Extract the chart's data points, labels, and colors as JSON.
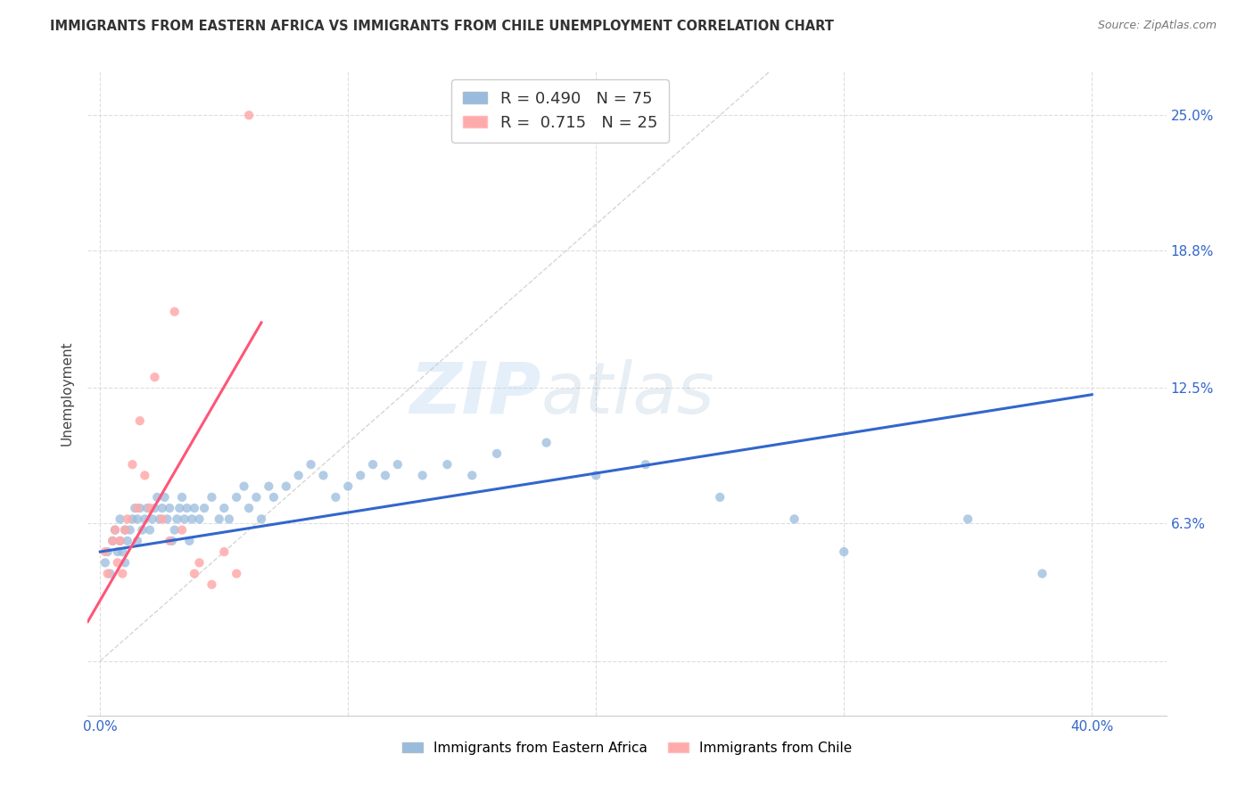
{
  "title": "IMMIGRANTS FROM EASTERN AFRICA VS IMMIGRANTS FROM CHILE UNEMPLOYMENT CORRELATION CHART",
  "source": "Source: ZipAtlas.com",
  "ylabel": "Unemployment",
  "yticks": [
    0.0,
    0.063,
    0.125,
    0.188,
    0.25
  ],
  "ytick_labels": [
    "",
    "6.3%",
    "12.5%",
    "18.8%",
    "25.0%"
  ],
  "xticks": [
    0.0,
    0.1,
    0.2,
    0.3,
    0.4
  ],
  "xtick_labels": [
    "0.0%",
    "",
    "",
    "",
    "40.0%"
  ],
  "xlim": [
    -0.005,
    0.43
  ],
  "ylim": [
    -0.025,
    0.27
  ],
  "R_blue": 0.49,
  "N_blue": 75,
  "R_pink": 0.715,
  "N_pink": 25,
  "blue_color": "#99BBDD",
  "pink_color": "#FFAAAA",
  "blue_line_color": "#3366CC",
  "pink_line_color": "#FF5577",
  "diag_line_color": "#CCCCCC",
  "legend_label_blue": "Immigrants from Eastern Africa",
  "legend_label_pink": "Immigrants from Chile",
  "blue_scatter_x": [
    0.002,
    0.003,
    0.004,
    0.005,
    0.006,
    0.007,
    0.008,
    0.008,
    0.009,
    0.01,
    0.01,
    0.011,
    0.012,
    0.013,
    0.014,
    0.015,
    0.015,
    0.016,
    0.017,
    0.018,
    0.019,
    0.02,
    0.021,
    0.022,
    0.023,
    0.024,
    0.025,
    0.026,
    0.027,
    0.028,
    0.029,
    0.03,
    0.031,
    0.032,
    0.033,
    0.034,
    0.035,
    0.036,
    0.037,
    0.038,
    0.04,
    0.042,
    0.045,
    0.048,
    0.05,
    0.052,
    0.055,
    0.058,
    0.06,
    0.063,
    0.065,
    0.068,
    0.07,
    0.075,
    0.08,
    0.085,
    0.09,
    0.095,
    0.1,
    0.105,
    0.11,
    0.115,
    0.12,
    0.13,
    0.14,
    0.15,
    0.16,
    0.18,
    0.2,
    0.22,
    0.25,
    0.28,
    0.3,
    0.35,
    0.38
  ],
  "blue_scatter_y": [
    0.045,
    0.05,
    0.04,
    0.055,
    0.06,
    0.05,
    0.055,
    0.065,
    0.05,
    0.06,
    0.045,
    0.055,
    0.06,
    0.065,
    0.07,
    0.055,
    0.065,
    0.07,
    0.06,
    0.065,
    0.07,
    0.06,
    0.065,
    0.07,
    0.075,
    0.065,
    0.07,
    0.075,
    0.065,
    0.07,
    0.055,
    0.06,
    0.065,
    0.07,
    0.075,
    0.065,
    0.07,
    0.055,
    0.065,
    0.07,
    0.065,
    0.07,
    0.075,
    0.065,
    0.07,
    0.065,
    0.075,
    0.08,
    0.07,
    0.075,
    0.065,
    0.08,
    0.075,
    0.08,
    0.085,
    0.09,
    0.085,
    0.075,
    0.08,
    0.085,
    0.09,
    0.085,
    0.09,
    0.085,
    0.09,
    0.085,
    0.095,
    0.1,
    0.085,
    0.09,
    0.075,
    0.065,
    0.05,
    0.065,
    0.04
  ],
  "pink_scatter_x": [
    0.002,
    0.003,
    0.005,
    0.006,
    0.007,
    0.008,
    0.009,
    0.01,
    0.011,
    0.013,
    0.015,
    0.016,
    0.018,
    0.02,
    0.022,
    0.025,
    0.028,
    0.03,
    0.033,
    0.038,
    0.04,
    0.045,
    0.05,
    0.055,
    0.06
  ],
  "pink_scatter_y": [
    0.05,
    0.04,
    0.055,
    0.06,
    0.045,
    0.055,
    0.04,
    0.06,
    0.065,
    0.09,
    0.07,
    0.11,
    0.085,
    0.07,
    0.13,
    0.065,
    0.055,
    0.16,
    0.06,
    0.04,
    0.045,
    0.035,
    0.05,
    0.04,
    0.25
  ],
  "blue_line_x": [
    0.0,
    0.4
  ],
  "blue_line_y": [
    0.05,
    0.122
  ],
  "pink_line_x": [
    -0.005,
    0.065
  ],
  "pink_line_y": [
    0.018,
    0.155
  ],
  "diag_line_x": [
    0.0,
    0.27
  ],
  "diag_line_y": [
    0.0,
    0.27
  ],
  "watermark_zip": "ZIP",
  "watermark_atlas": "atlas",
  "scatter_size": 55
}
